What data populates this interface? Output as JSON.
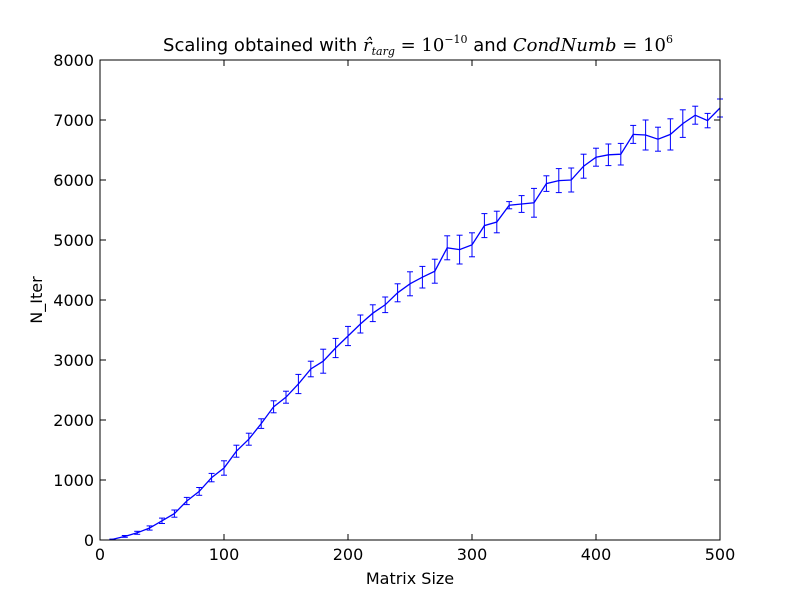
{
  "chart_data": {
    "type": "line",
    "title": {
      "prefix": "Scaling obtained with ",
      "r_symbol": "r̂",
      "r_subscript": "targ",
      "r_equals": " = ",
      "r_base": "10",
      "r_exponent": "−10",
      "connector": " and ",
      "cond_symbol": "CondNumb",
      "cond_equals": " = ",
      "cond_base": "10",
      "cond_exponent": "6"
    },
    "xlabel": "Matrix Size",
    "ylabel": "N_Iter",
    "xlim": [
      0,
      500
    ],
    "ylim": [
      0,
      8000
    ],
    "xticks": [
      0,
      100,
      200,
      300,
      400,
      500
    ],
    "yticks": [
      0,
      1000,
      2000,
      3000,
      4000,
      5000,
      6000,
      7000,
      8000
    ],
    "grid": false,
    "line_color": "#0000ff",
    "series": [
      {
        "x": [
          10,
          20,
          30,
          40,
          50,
          60,
          70,
          80,
          90,
          100,
          110,
          120,
          130,
          140,
          150,
          160,
          170,
          180,
          190,
          200,
          210,
          220,
          230,
          240,
          250,
          260,
          270,
          280,
          290,
          300,
          310,
          320,
          330,
          340,
          350,
          360,
          370,
          380,
          390,
          400,
          410,
          420,
          430,
          440,
          450,
          460,
          470,
          480,
          490,
          500
        ],
        "y": [
          10,
          60,
          120,
          200,
          320,
          440,
          650,
          810,
          1040,
          1200,
          1480,
          1680,
          1940,
          2220,
          2380,
          2600,
          2850,
          2980,
          3200,
          3400,
          3600,
          3780,
          3920,
          4120,
          4270,
          4380,
          4480,
          4870,
          4840,
          4920,
          5240,
          5300,
          5580,
          5600,
          5620,
          5940,
          5990,
          6000,
          6230,
          6380,
          6420,
          6430,
          6760,
          6750,
          6680,
          6760,
          6940,
          7080,
          6990,
          7200
        ],
        "err": [
          5,
          15,
          25,
          35,
          45,
          60,
          60,
          65,
          70,
          120,
          100,
          100,
          80,
          100,
          100,
          160,
          130,
          200,
          160,
          160,
          150,
          140,
          130,
          150,
          200,
          180,
          200,
          200,
          240,
          200,
          200,
          180,
          60,
          140,
          240,
          130,
          200,
          200,
          200,
          150,
          180,
          180,
          150,
          250,
          200,
          260,
          230,
          150,
          120,
          150
        ]
      }
    ]
  }
}
